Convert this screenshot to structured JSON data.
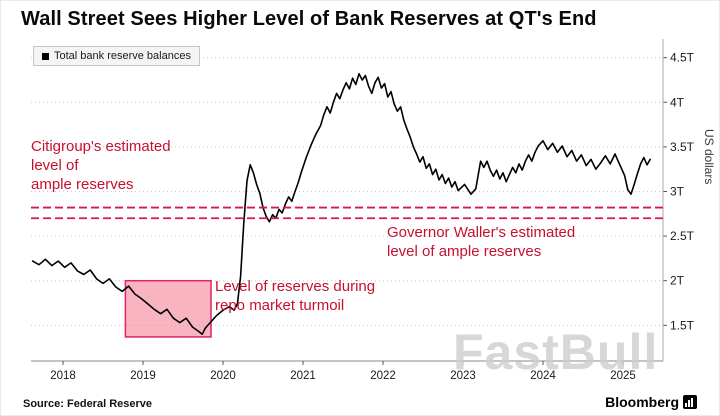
{
  "watermark": "FastBull",
  "footer": {
    "source": "Source: Federal Reserve",
    "brand": "Bloomberg"
  },
  "colors": {
    "accent_red": "#c8102e",
    "reference_red": "#d8184a",
    "highlight_fill": "rgba(244,106,134,0.5)",
    "highlight_stroke": "#e0245e",
    "series": "#000000"
  },
  "chart_data": {
    "type": "line",
    "title": "Wall Street Sees Higher Level of Bank Reserves at QT's End",
    "ylabel": "US dollars",
    "unit": "trillions of US dollars",
    "grid": "horizontal-dotted",
    "legend_position": "top-left",
    "xticks": [
      2018,
      2019,
      2020,
      2021,
      2022,
      2023,
      2024,
      2025
    ],
    "yticks": [
      "1.5T",
      "2T",
      "2.5T",
      "3T",
      "3.5T",
      "4T",
      "4.5T"
    ],
    "ytick_values": [
      1.5,
      2,
      2.5,
      3,
      3.5,
      4,
      4.5
    ],
    "xlim": [
      2017.6,
      2025.5
    ],
    "ylim": [
      1.1,
      4.62
    ],
    "reference_lines": [
      {
        "value": 2.82,
        "label_lines": [
          "Citigroup's estimated",
          "level of",
          "ample reserves"
        ]
      },
      {
        "value": 2.7,
        "label_lines": [
          "Governor Waller's estimated",
          "level of ample reserves"
        ]
      }
    ],
    "highlight_box": {
      "x0": 2018.78,
      "x1": 2019.85,
      "y0": 1.37,
      "y1": 2.0,
      "label_lines": [
        "Level of reserves during",
        "repo market turmoil"
      ]
    },
    "series": [
      {
        "name": "Total bank reserve balances",
        "points": [
          [
            2017.62,
            2.22
          ],
          [
            2017.7,
            2.18
          ],
          [
            2017.78,
            2.24
          ],
          [
            2017.86,
            2.17
          ],
          [
            2017.94,
            2.22
          ],
          [
            2018.02,
            2.15
          ],
          [
            2018.1,
            2.2
          ],
          [
            2018.18,
            2.11
          ],
          [
            2018.26,
            2.07
          ],
          [
            2018.34,
            2.12
          ],
          [
            2018.42,
            2.02
          ],
          [
            2018.5,
            1.97
          ],
          [
            2018.58,
            2.02
          ],
          [
            2018.66,
            1.93
          ],
          [
            2018.74,
            1.88
          ],
          [
            2018.82,
            1.94
          ],
          [
            2018.9,
            1.85
          ],
          [
            2018.98,
            1.8
          ],
          [
            2019.06,
            1.74
          ],
          [
            2019.14,
            1.68
          ],
          [
            2019.22,
            1.63
          ],
          [
            2019.3,
            1.68
          ],
          [
            2019.38,
            1.58
          ],
          [
            2019.46,
            1.53
          ],
          [
            2019.54,
            1.58
          ],
          [
            2019.62,
            1.48
          ],
          [
            2019.7,
            1.43
          ],
          [
            2019.74,
            1.4
          ],
          [
            2019.78,
            1.47
          ],
          [
            2019.84,
            1.53
          ],
          [
            2019.92,
            1.61
          ],
          [
            2020.0,
            1.67
          ],
          [
            2020.08,
            1.71
          ],
          [
            2020.14,
            1.67
          ],
          [
            2020.18,
            1.74
          ],
          [
            2020.22,
            2.05
          ],
          [
            2020.26,
            2.65
          ],
          [
            2020.3,
            3.12
          ],
          [
            2020.34,
            3.3
          ],
          [
            2020.38,
            3.21
          ],
          [
            2020.42,
            3.08
          ],
          [
            2020.46,
            2.98
          ],
          [
            2020.5,
            2.82
          ],
          [
            2020.54,
            2.72
          ],
          [
            2020.58,
            2.66
          ],
          [
            2020.62,
            2.74
          ],
          [
            2020.66,
            2.7
          ],
          [
            2020.7,
            2.8
          ],
          [
            2020.74,
            2.76
          ],
          [
            2020.78,
            2.86
          ],
          [
            2020.82,
            2.94
          ],
          [
            2020.86,
            2.89
          ],
          [
            2020.9,
            3.0
          ],
          [
            2020.94,
            3.1
          ],
          [
            2020.98,
            3.22
          ],
          [
            2021.04,
            3.38
          ],
          [
            2021.1,
            3.52
          ],
          [
            2021.16,
            3.64
          ],
          [
            2021.22,
            3.74
          ],
          [
            2021.26,
            3.86
          ],
          [
            2021.3,
            3.95
          ],
          [
            2021.34,
            3.88
          ],
          [
            2021.38,
            4.0
          ],
          [
            2021.42,
            4.1
          ],
          [
            2021.46,
            4.04
          ],
          [
            2021.5,
            4.14
          ],
          [
            2021.54,
            4.22
          ],
          [
            2021.58,
            4.15
          ],
          [
            2021.62,
            4.27
          ],
          [
            2021.66,
            4.2
          ],
          [
            2021.7,
            4.32
          ],
          [
            2021.74,
            4.25
          ],
          [
            2021.78,
            4.3
          ],
          [
            2021.82,
            4.18
          ],
          [
            2021.86,
            4.1
          ],
          [
            2021.9,
            4.22
          ],
          [
            2021.94,
            4.28
          ],
          [
            2021.98,
            4.16
          ],
          [
            2022.02,
            4.21
          ],
          [
            2022.06,
            4.06
          ],
          [
            2022.1,
            4.12
          ],
          [
            2022.14,
            3.98
          ],
          [
            2022.18,
            3.9
          ],
          [
            2022.22,
            3.95
          ],
          [
            2022.26,
            3.8
          ],
          [
            2022.3,
            3.7
          ],
          [
            2022.34,
            3.61
          ],
          [
            2022.38,
            3.5
          ],
          [
            2022.42,
            3.42
          ],
          [
            2022.46,
            3.33
          ],
          [
            2022.5,
            3.39
          ],
          [
            2022.54,
            3.26
          ],
          [
            2022.58,
            3.31
          ],
          [
            2022.62,
            3.19
          ],
          [
            2022.66,
            3.25
          ],
          [
            2022.7,
            3.13
          ],
          [
            2022.74,
            3.19
          ],
          [
            2022.78,
            3.09
          ],
          [
            2022.82,
            3.15
          ],
          [
            2022.86,
            3.05
          ],
          [
            2022.9,
            3.11
          ],
          [
            2022.94,
            3.01
          ],
          [
            2023.02,
            3.08
          ],
          [
            2023.1,
            2.97
          ],
          [
            2023.16,
            3.03
          ],
          [
            2023.22,
            3.34
          ],
          [
            2023.26,
            3.27
          ],
          [
            2023.3,
            3.34
          ],
          [
            2023.34,
            3.24
          ],
          [
            2023.38,
            3.17
          ],
          [
            2023.42,
            3.24
          ],
          [
            2023.46,
            3.14
          ],
          [
            2023.5,
            3.21
          ],
          [
            2023.54,
            3.11
          ],
          [
            2023.58,
            3.19
          ],
          [
            2023.62,
            3.27
          ],
          [
            2023.66,
            3.21
          ],
          [
            2023.7,
            3.31
          ],
          [
            2023.74,
            3.24
          ],
          [
            2023.78,
            3.34
          ],
          [
            2023.82,
            3.41
          ],
          [
            2023.86,
            3.34
          ],
          [
            2023.9,
            3.44
          ],
          [
            2023.94,
            3.51
          ],
          [
            2024.0,
            3.57
          ],
          [
            2024.06,
            3.47
          ],
          [
            2024.12,
            3.54
          ],
          [
            2024.18,
            3.44
          ],
          [
            2024.24,
            3.51
          ],
          [
            2024.3,
            3.39
          ],
          [
            2024.36,
            3.46
          ],
          [
            2024.42,
            3.34
          ],
          [
            2024.48,
            3.41
          ],
          [
            2024.54,
            3.29
          ],
          [
            2024.6,
            3.36
          ],
          [
            2024.66,
            3.25
          ],
          [
            2024.72,
            3.32
          ],
          [
            2024.78,
            3.4
          ],
          [
            2024.84,
            3.31
          ],
          [
            2024.9,
            3.42
          ],
          [
            2024.96,
            3.3
          ],
          [
            2025.02,
            3.18
          ],
          [
            2025.06,
            3.02
          ],
          [
            2025.1,
            2.97
          ],
          [
            2025.14,
            3.08
          ],
          [
            2025.18,
            3.2
          ],
          [
            2025.22,
            3.31
          ],
          [
            2025.26,
            3.38
          ],
          [
            2025.3,
            3.3
          ],
          [
            2025.34,
            3.36
          ]
        ]
      }
    ]
  }
}
